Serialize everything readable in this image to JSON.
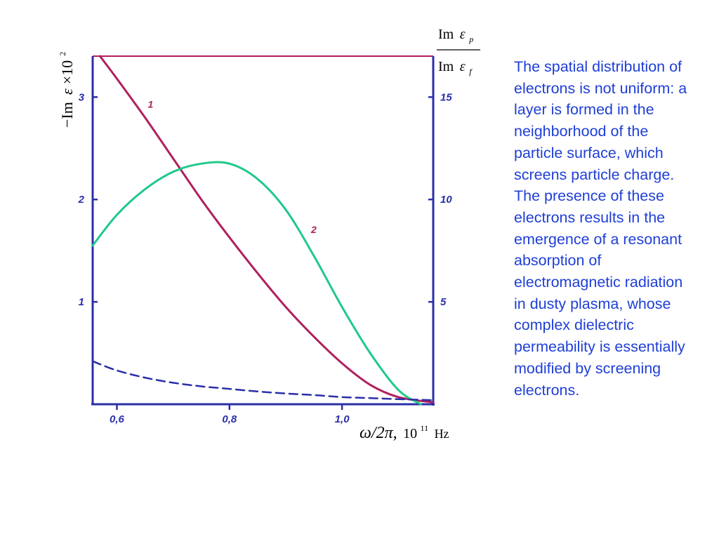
{
  "chart_data": {
    "type": "line",
    "title": "",
    "xlabel": {
      "main": "ω/2π,",
      "base": "10",
      "exponent": "11",
      "unit": "Hz"
    },
    "ylabel_left": {
      "prefix": "−Im",
      "symbol": "ε",
      "times": "×10",
      "exponent": "2"
    },
    "ylabel_right": {
      "numerator": "Im",
      "numerator_symbol": "ε",
      "numerator_sub": "p",
      "denominator": "Im",
      "denominator_symbol": "ε",
      "denominator_sub": "f"
    },
    "xlim": [
      0.557,
      1.162
    ],
    "ylim_left": [
      0,
      3.4
    ],
    "ylim_right": [
      0,
      17
    ],
    "x_ticks": [
      {
        "value": 0.6,
        "label": "0,6"
      },
      {
        "value": 0.8,
        "label": "0,8"
      },
      {
        "value": 1.0,
        "label": "1,0"
      }
    ],
    "y_left_ticks": [
      {
        "value": 1,
        "label": "1"
      },
      {
        "value": 2,
        "label": "2"
      },
      {
        "value": 3,
        "label": "3"
      }
    ],
    "y_right_ticks": [
      {
        "value": 5,
        "label": "5"
      },
      {
        "value": 10,
        "label": "10"
      },
      {
        "value": 15,
        "label": "15"
      }
    ],
    "series": [
      {
        "label": "1",
        "axis": "left",
        "color": "#b0205e",
        "style": "solid",
        "x": [
          0.57,
          0.6,
          0.65,
          0.7,
          0.75,
          0.8,
          0.85,
          0.9,
          0.95,
          1.0,
          1.05,
          1.1,
          1.16
        ],
        "y": [
          3.4,
          3.18,
          2.8,
          2.4,
          2.0,
          1.63,
          1.28,
          0.95,
          0.66,
          0.4,
          0.19,
          0.07,
          0.02
        ]
      },
      {
        "label": "2",
        "axis": "left",
        "color": "#1fc98a",
        "style": "solid",
        "x": [
          0.557,
          0.6,
          0.65,
          0.7,
          0.75,
          0.8,
          0.85,
          0.9,
          0.95,
          1.0,
          1.05,
          1.1,
          1.14
        ],
        "y": [
          1.55,
          1.85,
          2.1,
          2.27,
          2.35,
          2.35,
          2.2,
          1.9,
          1.45,
          0.95,
          0.5,
          0.14,
          0.0
        ]
      },
      {
        "label": "",
        "axis": "left",
        "color": "#2b2fa8",
        "style": "dashed",
        "x": [
          0.557,
          0.6,
          0.65,
          0.7,
          0.75,
          0.8,
          0.85,
          0.9,
          0.95,
          1.0,
          1.05,
          1.1,
          1.16
        ],
        "y": [
          0.42,
          0.33,
          0.26,
          0.21,
          0.175,
          0.15,
          0.125,
          0.105,
          0.09,
          0.07,
          0.06,
          0.05,
          0.04
        ]
      }
    ],
    "grid": false,
    "legend": "none",
    "axis_color": "#2b2fa8",
    "top_line_color": "#b0205e"
  },
  "description": "The spatial distribution of electrons is not uniform: a layer is formed in the neighborhood of the particle surface, which screens particle charge. The presence of these electrons results in the emergence of a resonant absorption of electromagnetic radiation in dusty plasma, whose complex dielectric permeability is essentially modified by screening electrons."
}
